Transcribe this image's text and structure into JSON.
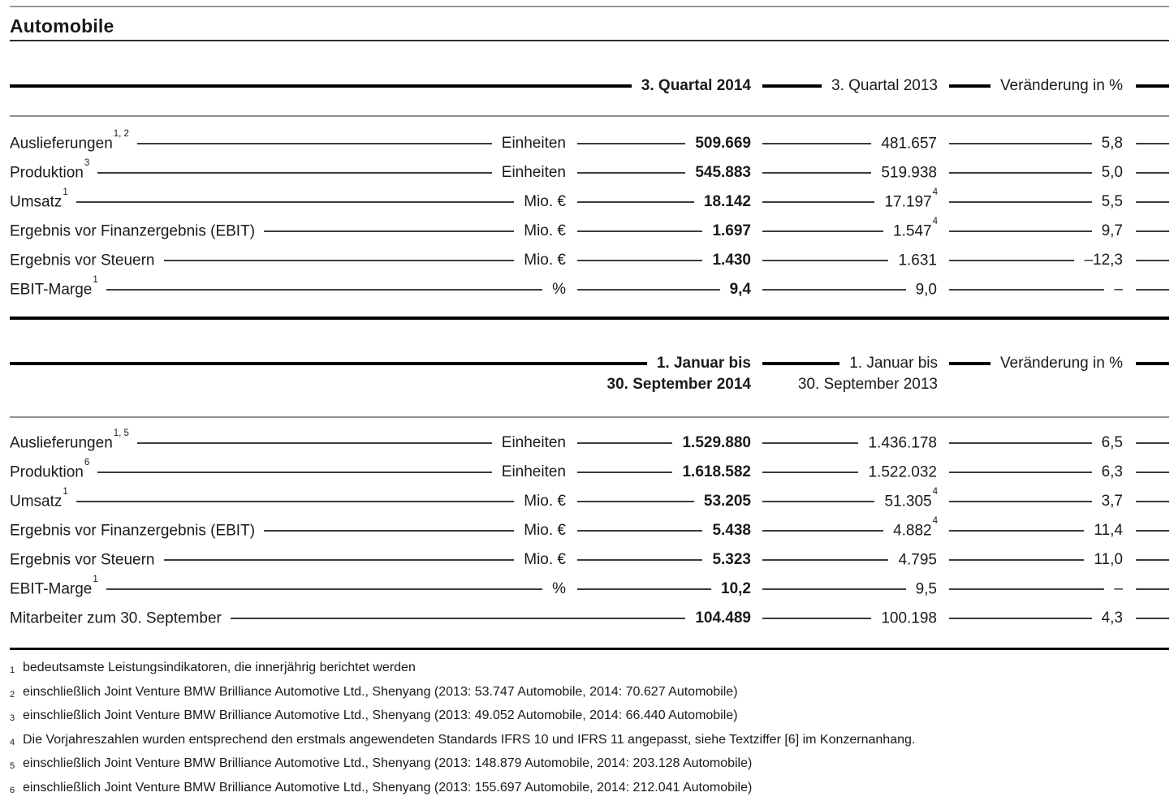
{
  "title": "Automobile",
  "q3": {
    "col2014": "3. Quartal 2014",
    "col2013": "3. Quartal 2013",
    "colchange": "Veränderung in %",
    "rows": [
      {
        "label": "Auslieferungen",
        "sup": "1, 2",
        "unit": "Einheiten",
        "v2014": "509.669",
        "v2013": "481.657",
        "v2013sup": "",
        "change": "5,8"
      },
      {
        "label": "Produktion",
        "sup": "3",
        "unit": "Einheiten",
        "v2014": "545.883",
        "v2013": "519.938",
        "v2013sup": "",
        "change": "5,0"
      },
      {
        "label": "Umsatz",
        "sup": "1",
        "unit": "Mio. €",
        "v2014": "18.142",
        "v2013": "17.197",
        "v2013sup": "4",
        "change": "5,5"
      },
      {
        "label": "Ergebnis vor Finanzergebnis (EBIT)",
        "sup": "",
        "unit": "Mio. €",
        "v2014": "1.697",
        "v2013": "1.547",
        "v2013sup": "4",
        "change": "9,7"
      },
      {
        "label": "Ergebnis vor Steuern",
        "sup": "",
        "unit": "Mio. €",
        "v2014": "1.430",
        "v2013": "1.631",
        "v2013sup": "",
        "change": "–12,3"
      },
      {
        "label": "EBIT-Marge",
        "sup": "1",
        "unit": "%",
        "v2014": "9,4",
        "v2013": "9,0",
        "v2013sup": "",
        "change": "–"
      }
    ]
  },
  "ytd": {
    "col2014_line1": "1. Januar bis",
    "col2014_line2": "30. September 2014",
    "col2013_line1": "1. Januar bis",
    "col2013_line2": "30. September 2013",
    "colchange": "Veränderung in %",
    "rows": [
      {
        "label": "Auslieferungen",
        "sup": "1, 5",
        "unit": "Einheiten",
        "v2014": "1.529.880",
        "v2013": "1.436.178",
        "v2013sup": "",
        "change": "6,5"
      },
      {
        "label": "Produktion",
        "sup": "6",
        "unit": "Einheiten",
        "v2014": "1.618.582",
        "v2013": "1.522.032",
        "v2013sup": "",
        "change": "6,3"
      },
      {
        "label": "Umsatz",
        "sup": "1",
        "unit": "Mio. €",
        "v2014": "53.205",
        "v2013": "51.305",
        "v2013sup": "4",
        "change": "3,7"
      },
      {
        "label": "Ergebnis vor Finanzergebnis (EBIT)",
        "sup": "",
        "unit": "Mio. €",
        "v2014": "5.438",
        "v2013": "4.882",
        "v2013sup": "4",
        "change": "11,4"
      },
      {
        "label": "Ergebnis vor Steuern",
        "sup": "",
        "unit": "Mio. €",
        "v2014": "5.323",
        "v2013": "4.795",
        "v2013sup": "",
        "change": "11,0"
      },
      {
        "label": "EBIT-Marge",
        "sup": "1",
        "unit": "%",
        "v2014": "10,2",
        "v2013": "9,5",
        "v2013sup": "",
        "change": "–"
      },
      {
        "label": "Mitarbeiter zum 30. September",
        "sup": "",
        "unit": "",
        "v2014": "104.489",
        "v2013": "100.198",
        "v2013sup": "",
        "change": "4,3"
      }
    ]
  },
  "footnotes": [
    {
      "n": "1",
      "text": "bedeutsamste Leistungsindikatoren, die innerjährig berichtet werden"
    },
    {
      "n": "2",
      "text": "einschließlich Joint Venture BMW Brilliance Automotive Ltd., Shenyang (2013: 53.747 Automobile, 2014: 70.627 Automobile)"
    },
    {
      "n": "3",
      "text": "einschließlich Joint Venture BMW Brilliance Automotive Ltd., Shenyang (2013: 49.052 Automobile, 2014: 66.440 Automobile)"
    },
    {
      "n": "4",
      "text": "Die Vorjahreszahlen wurden entsprechend den erstmals angewendeten Standards IFRS 10 und IFRS 11 angepasst, siehe Textziffer [6] im Konzernanhang."
    },
    {
      "n": "5",
      "text": "einschließlich Joint Venture BMW Brilliance Automotive Ltd., Shenyang (2013: 148.879 Automobile, 2014: 203.128 Automobile)"
    },
    {
      "n": "6",
      "text": "einschließlich Joint Venture BMW Brilliance Automotive Ltd., Shenyang (2013: 155.697 Automobile, 2014: 212.041 Automobile)"
    }
  ]
}
